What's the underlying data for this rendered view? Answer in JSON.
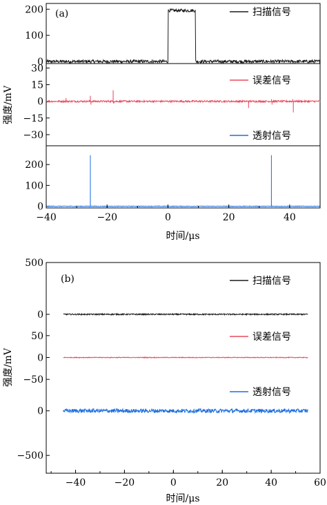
{
  "chart_data": [
    {
      "type": "line",
      "panel_label": "(a)",
      "xlabel": "时间/μs",
      "ylabel": "强度/mV",
      "xlim": [
        -40,
        50
      ],
      "xticks": [
        "−40",
        "−20",
        "0",
        "20",
        "40"
      ],
      "xtick_values": [
        -40,
        -20,
        0,
        20,
        40
      ],
      "grid": false,
      "legend_position": "right",
      "series": [
        {
          "name": "扫描信号",
          "color": "#1a1a1a",
          "ylim": [
            -8,
            222
          ],
          "yticks": [
            "0",
            "100",
            "200"
          ],
          "ytick_values": [
            0,
            100,
            200
          ],
          "baseline": 0,
          "noise": 6,
          "segments": [
            {
              "x_start": 0,
              "x_end": 9,
              "value": 195
            }
          ],
          "spikes": []
        },
        {
          "name": "误差信号",
          "color": "#e8485c",
          "ylim": [
            -40,
            34
          ],
          "yticks": [
            "30",
            "15",
            "0",
            "−15",
            "−30"
          ],
          "ytick_values": [
            30,
            15,
            0,
            -15,
            -30
          ],
          "baseline": 0,
          "noise": 0.8,
          "segments": [],
          "spikes": [
            {
              "x": -33.5,
              "value": 3
            },
            {
              "x": -25.5,
              "value": 5
            },
            {
              "x": -25.3,
              "value": -3
            },
            {
              "x": -18,
              "value": 10
            },
            {
              "x": -17.8,
              "value": -2
            },
            {
              "x": 26.5,
              "value": -6
            },
            {
              "x": 34,
              "value": 2
            },
            {
              "x": 34.2,
              "value": -3
            },
            {
              "x": 41,
              "value": 2
            },
            {
              "x": 41.2,
              "value": -10
            }
          ]
        },
        {
          "name": "透射信号",
          "color": "#1c6fe0",
          "ylim": [
            -8,
            290
          ],
          "yticks": [
            "0",
            "100",
            "200"
          ],
          "ytick_values": [
            0,
            100,
            200
          ],
          "baseline": 0,
          "noise": 1.5,
          "segments": [],
          "spikes": [
            {
              "x": -25.5,
              "value": 245
            },
            {
              "x": 34,
              "value": 245
            }
          ]
        }
      ]
    },
    {
      "type": "line",
      "panel_label": "(b)",
      "xlabel": "时间/μs",
      "ylabel": "强度/mV",
      "xlim": [
        -52,
        60
      ],
      "xticks": [
        "−40",
        "−20",
        "0",
        "20",
        "40",
        "60"
      ],
      "xtick_values": [
        -40,
        -20,
        0,
        20,
        40,
        60
      ],
      "data_x_range": [
        -45,
        55
      ],
      "grid": false,
      "legend_position": "right",
      "y_ticks_stacked": [
        "500",
        "0",
        "50",
        "0",
        "−50",
        "0",
        "−500"
      ],
      "series": [
        {
          "name": "扫描信号",
          "color": "#1a1a1a",
          "ylim": [
            -100,
            500
          ],
          "yticks": [
            "500",
            "0"
          ],
          "ytick_values": [
            500,
            0
          ],
          "baseline": 0,
          "noise": 6
        },
        {
          "name": "误差信号",
          "color": "#e8485c",
          "ylim": [
            -75,
            75
          ],
          "yticks": [
            "50",
            "0",
            "−50"
          ],
          "ytick_values": [
            50,
            0,
            -50
          ],
          "baseline": 0,
          "noise": 0.8
        },
        {
          "name": "透射信号",
          "color": "#1c6fe0",
          "ylim": [
            -700,
            230
          ],
          "yticks": [
            "0",
            "−500"
          ],
          "ytick_values": [
            0,
            -500
          ],
          "baseline": 0,
          "noise": 22
        }
      ]
    }
  ]
}
